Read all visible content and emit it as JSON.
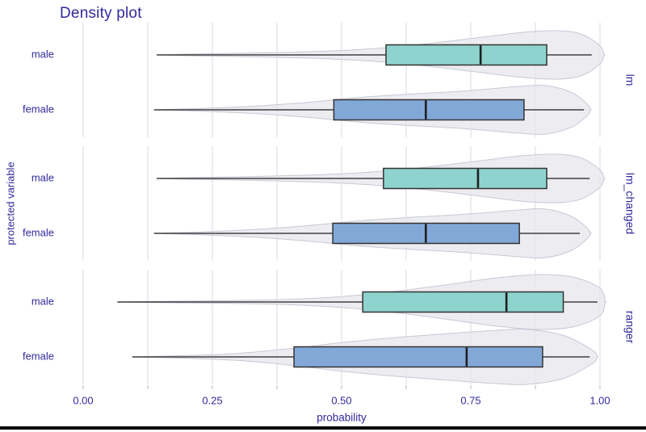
{
  "chart_data": {
    "type": "violin",
    "title": "Density plot",
    "xlabel": "probability",
    "ylabel": "protected variable",
    "xlim": [
      0,
      1
    ],
    "x_ticks": [
      {
        "value": 0.0,
        "label": "0.00"
      },
      {
        "value": 0.25,
        "label": "0.25"
      },
      {
        "value": 0.5,
        "label": "0.50"
      },
      {
        "value": 0.75,
        "label": "0.75"
      },
      {
        "value": 1.0,
        "label": "1.00"
      }
    ],
    "x_minor_ticks": [
      0.125,
      0.375,
      0.625,
      0.875
    ],
    "categories": [
      "male",
      "female"
    ],
    "legend": "none",
    "grid": "on",
    "facets": [
      {
        "label": "lm",
        "rows": [
          {
            "category": "male",
            "box": {
              "whisker_low": 0.142,
              "q1": 0.586,
              "median": 0.769,
              "q3": 0.897,
              "whisker_high": 0.984
            },
            "density": [
              [
                0.142,
                0.0
              ],
              [
                0.22,
                0.04
              ],
              [
                0.33,
                0.08
              ],
              [
                0.45,
                0.14
              ],
              [
                0.56,
                0.26
              ],
              [
                0.66,
                0.45
              ],
              [
                0.76,
                0.7
              ],
              [
                0.85,
                0.93
              ],
              [
                0.92,
                1.0
              ],
              [
                0.965,
                0.85
              ],
              [
                1.0,
                0.38
              ],
              [
                1.008,
                0.0
              ]
            ]
          },
          {
            "category": "female",
            "box": {
              "whisker_low": 0.137,
              "q1": 0.485,
              "median": 0.663,
              "q3": 0.853,
              "whisker_high": 0.969
            },
            "density": [
              [
                0.137,
                0.0
              ],
              [
                0.23,
                0.06
              ],
              [
                0.33,
                0.15
              ],
              [
                0.44,
                0.32
              ],
              [
                0.54,
                0.52
              ],
              [
                0.64,
                0.66
              ],
              [
                0.74,
                0.78
              ],
              [
                0.84,
                0.96
              ],
              [
                0.895,
                1.0
              ],
              [
                0.945,
                0.72
              ],
              [
                0.975,
                0.25
              ],
              [
                0.982,
                0.0
              ]
            ]
          }
        ]
      },
      {
        "label": "lm_changed",
        "rows": [
          {
            "category": "male",
            "box": {
              "whisker_low": 0.142,
              "q1": 0.581,
              "median": 0.764,
              "q3": 0.897,
              "whisker_high": 0.98
            },
            "density": [
              [
                0.142,
                0.0
              ],
              [
                0.22,
                0.04
              ],
              [
                0.33,
                0.08
              ],
              [
                0.45,
                0.15
              ],
              [
                0.56,
                0.27
              ],
              [
                0.66,
                0.46
              ],
              [
                0.76,
                0.71
              ],
              [
                0.85,
                0.94
              ],
              [
                0.92,
                1.0
              ],
              [
                0.965,
                0.84
              ],
              [
                1.0,
                0.36
              ],
              [
                1.008,
                0.0
              ]
            ]
          },
          {
            "category": "female",
            "box": {
              "whisker_low": 0.137,
              "q1": 0.483,
              "median": 0.663,
              "q3": 0.844,
              "whisker_high": 0.961
            },
            "density": [
              [
                0.137,
                0.0
              ],
              [
                0.23,
                0.06
              ],
              [
                0.33,
                0.16
              ],
              [
                0.44,
                0.33
              ],
              [
                0.54,
                0.53
              ],
              [
                0.64,
                0.67
              ],
              [
                0.74,
                0.79
              ],
              [
                0.84,
                0.96
              ],
              [
                0.895,
                1.0
              ],
              [
                0.945,
                0.7
              ],
              [
                0.975,
                0.22
              ],
              [
                0.982,
                0.0
              ]
            ]
          }
        ]
      },
      {
        "label": "ranger",
        "rows": [
          {
            "category": "male",
            "box": {
              "whisker_low": 0.066,
              "q1": 0.541,
              "median": 0.819,
              "q3": 0.929,
              "whisker_high": 0.995
            },
            "density": [
              [
                0.066,
                0.0
              ],
              [
                0.16,
                0.025
              ],
              [
                0.28,
                0.05
              ],
              [
                0.4,
                0.1
              ],
              [
                0.5,
                0.2
              ],
              [
                0.6,
                0.38
              ],
              [
                0.7,
                0.62
              ],
              [
                0.8,
                0.88
              ],
              [
                0.885,
                1.0
              ],
              [
                0.95,
                0.9
              ],
              [
                1.0,
                0.5
              ],
              [
                1.01,
                0.0
              ]
            ]
          },
          {
            "category": "female",
            "box": {
              "whisker_low": 0.095,
              "q1": 0.408,
              "median": 0.742,
              "q3": 0.889,
              "whisker_high": 0.98
            },
            "density": [
              [
                0.095,
                0.0
              ],
              [
                0.2,
                0.05
              ],
              [
                0.3,
                0.13
              ],
              [
                0.4,
                0.3
              ],
              [
                0.5,
                0.52
              ],
              [
                0.6,
                0.7
              ],
              [
                0.7,
                0.84
              ],
              [
                0.8,
                0.97
              ],
              [
                0.86,
                1.0
              ],
              [
                0.93,
                0.78
              ],
              [
                0.985,
                0.25
              ],
              [
                0.995,
                0.0
              ]
            ]
          }
        ]
      }
    ]
  },
  "colors": {
    "text": "#322a9b",
    "male_fill": "#8ed3ce",
    "female_fill": "#82a8d8",
    "violin_fill": "#e7e7ee",
    "violin_stroke": "#c9c9d6",
    "box_stroke": "#333333",
    "median": "#1f1f1f",
    "whisker": "#404040",
    "grid": "#dadae4",
    "tick": "#b9b9c4",
    "bottom_bar": "#000000"
  }
}
